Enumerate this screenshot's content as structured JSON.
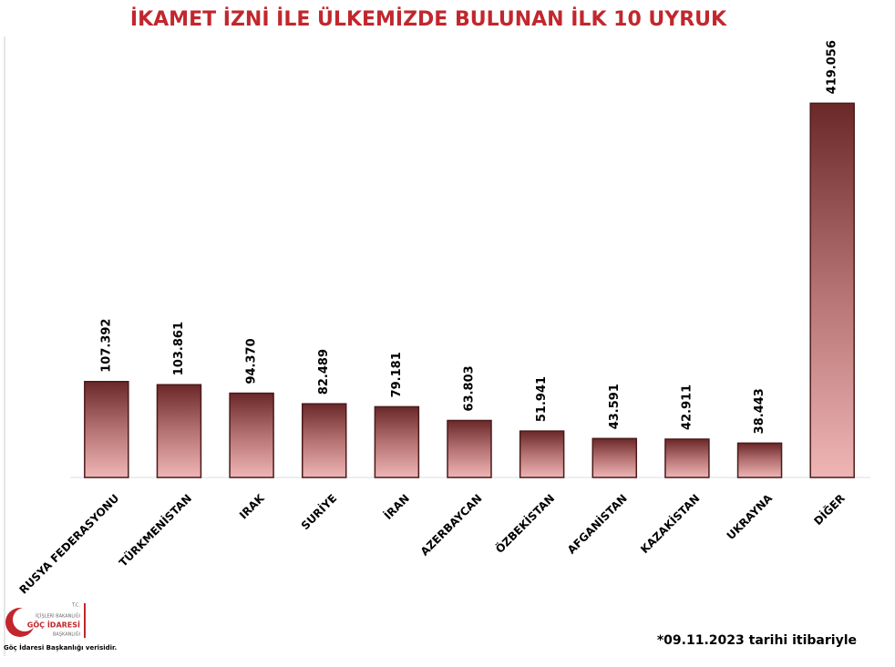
{
  "chart_data": {
    "type": "bar",
    "title": "İKAMET İZNİ İLE ÜLKEMİZDE BULUNAN İLK 10 UYRUK",
    "categories": [
      "RUSYA FEDERASYONU",
      "TÜRKMENİSTAN",
      "IRAK",
      "SURİYE",
      "İRAN",
      "AZERBAYCAN",
      "ÖZBEKİSTAN",
      "AFGANİSTAN",
      "KAZAKİSTAN",
      "UKRAYNA",
      "DİĞER"
    ],
    "values": [
      107392,
      103861,
      94370,
      82489,
      79181,
      63803,
      51941,
      43591,
      42911,
      38443,
      419056
    ],
    "value_labels": [
      "107.392",
      "103.861",
      "94.370",
      "82.489",
      "79.181",
      "63.803",
      "51.941",
      "43.591",
      "42.911",
      "38.443",
      "419.056"
    ],
    "color": "#7a3434",
    "ylim": [
      0,
      500000
    ],
    "footnote": "*09.11.2023 tarihi itibariyle"
  },
  "logo": {
    "line1": "T.C.",
    "line2": "İÇİŞLERİ BAKANLIĞI",
    "line3": "GÖÇ İDARESİ",
    "line4": "BAŞKANLIĞI"
  },
  "source": "Göç İdaresi Başkanlığı verisidir."
}
